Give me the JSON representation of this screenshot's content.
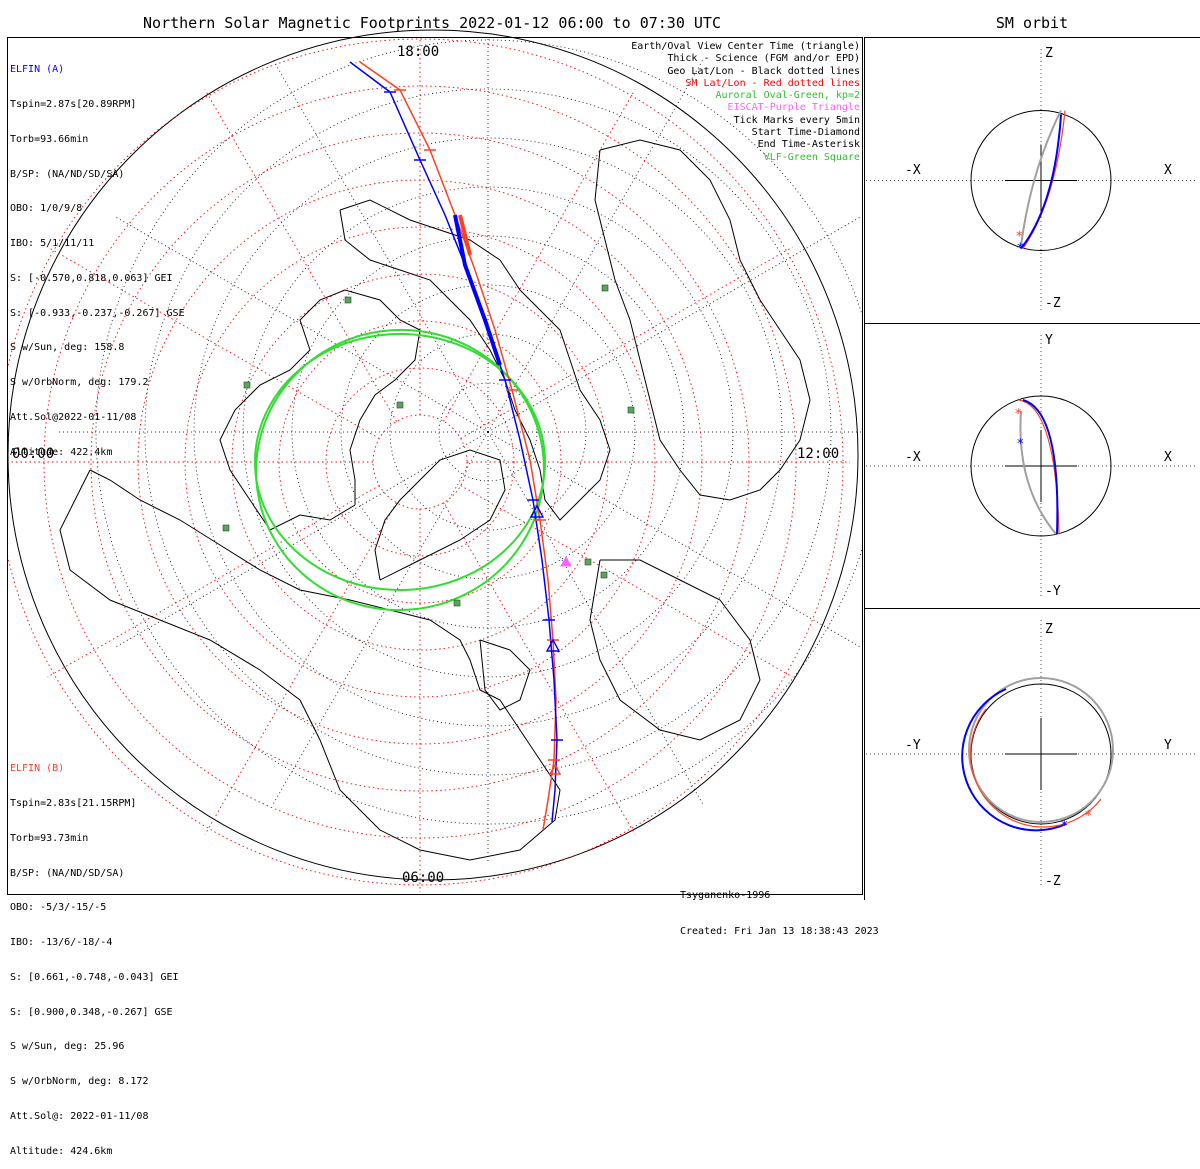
{
  "title": "Northern Solar Magnetic Footprints 2022-01-12 06:00 to 07:30 UTC",
  "sm_title": "SM orbit",
  "time_labels": {
    "top": "18:00",
    "left": "00:00",
    "right": "12:00",
    "bottom": "06:00"
  },
  "elfin_a": {
    "name": "ELFIN (A)",
    "color": "#0000ff",
    "lines": [
      "Tspin=2.87s[20.89RPM]",
      "Torb=93.66min",
      "B/SP: (NA/ND/SD/SA)",
      "OBO: 1/0/9/8",
      "IBO: 5/1/11/11",
      "S: [-0.570,0.818,0.063] GEI",
      "S: [-0.933,-0.237,-0.267] GSE",
      "S w/Sun, deg: 158.8",
      "S w/OrbNorm, deg: 179.2",
      "Att.Sol@2022-01-11/08",
      "Altitude: 422.4km"
    ]
  },
  "elfin_b": {
    "name": "ELFIN (B)",
    "color": "#ff4020",
    "lines": [
      "Tspin=2.83s[21.15RPM]",
      "Torb=93.73min",
      "B/SP: (NA/ND/SD/SA)",
      "OBO: -5/3/-15/-5",
      "IBO: -13/6/-18/-4",
      "S: [0.661,-0.748,-0.043] GEI",
      "S: [0.900,0.348,-0.267] GSE",
      "S w/Sun, deg: 25.96",
      "S w/OrbNorm, deg: 8.172",
      "Att.Sol@: 2022-01-11/08",
      "Altitude: 424.6km"
    ]
  },
  "legend": [
    {
      "text": "Earth/Oval View Center Time (triangle)",
      "color": "#000000"
    },
    {
      "text": "Thick - Science (FGM and/or EPD)",
      "color": "#000000"
    },
    {
      "text": "Geo Lat/Lon - Black dotted lines",
      "color": "#000000"
    },
    {
      "text": "SM Lat/Lon - Red dotted lines",
      "color": "#ff0000"
    },
    {
      "text": "Auroral Oval-Green, kp=2",
      "color": "#30c030"
    },
    {
      "text": "EISCAT-Purple Triangle",
      "color": "#ff60ff"
    },
    {
      "text": "Tick Marks every 5min",
      "color": "#000000"
    },
    {
      "text": "Start Time-Diamond",
      "color": "#000000"
    },
    {
      "text": "End Time-Asterisk",
      "color": "#000000"
    },
    {
      "text": "VLF-Green Square",
      "color": "#30c030"
    }
  ],
  "footer": {
    "model": "Tsyganenko-1996",
    "created": "Created: Fri Jan 13 18:38:43 2023"
  },
  "panels": [
    {
      "top": "Z",
      "bottom": "-Z",
      "left": "-X",
      "right": "X"
    },
    {
      "top": "Y",
      "bottom": "-Y",
      "left": "-X",
      "right": "X"
    },
    {
      "top": "Z",
      "bottom": "-Z",
      "left": "-Y",
      "right": "Y"
    }
  ],
  "colors": {
    "elfin_a": "#0000ff",
    "elfin_b": "#ff4020",
    "oval": "#30dd30",
    "sm_grid": "#ff0000",
    "geo_grid": "#000000",
    "orbit_gray": "#a0a0a0",
    "vlf": "#60a060",
    "eiscat": "#ff60ff"
  }
}
